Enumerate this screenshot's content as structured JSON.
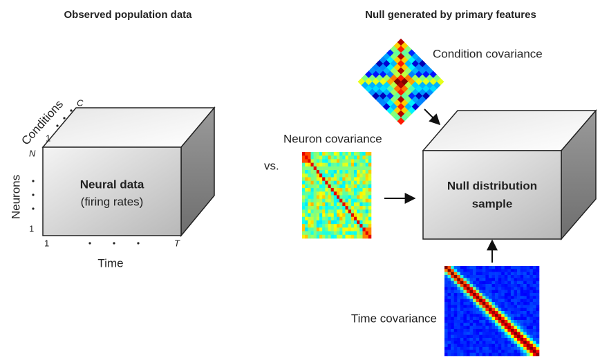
{
  "headers": {
    "left": "Observed population data",
    "right": "Null generated by primary features"
  },
  "cube": {
    "label": "Neural data",
    "sublabel": "(firing rates)",
    "axes": {
      "conditions": {
        "label": "Conditions",
        "start": "1",
        "end": "C"
      },
      "neurons": {
        "label": "Neurons",
        "start": "1",
        "end": "N"
      },
      "time": {
        "label": "Time",
        "start": "1",
        "end": "T"
      }
    }
  },
  "comparison": "vs.",
  "null_cube": {
    "label_lines": [
      "Null distribution",
      "sample"
    ]
  },
  "covariances": {
    "condition": "Condition covariance",
    "neuron": "Neuron covariance",
    "time": "Time covariance"
  }
}
